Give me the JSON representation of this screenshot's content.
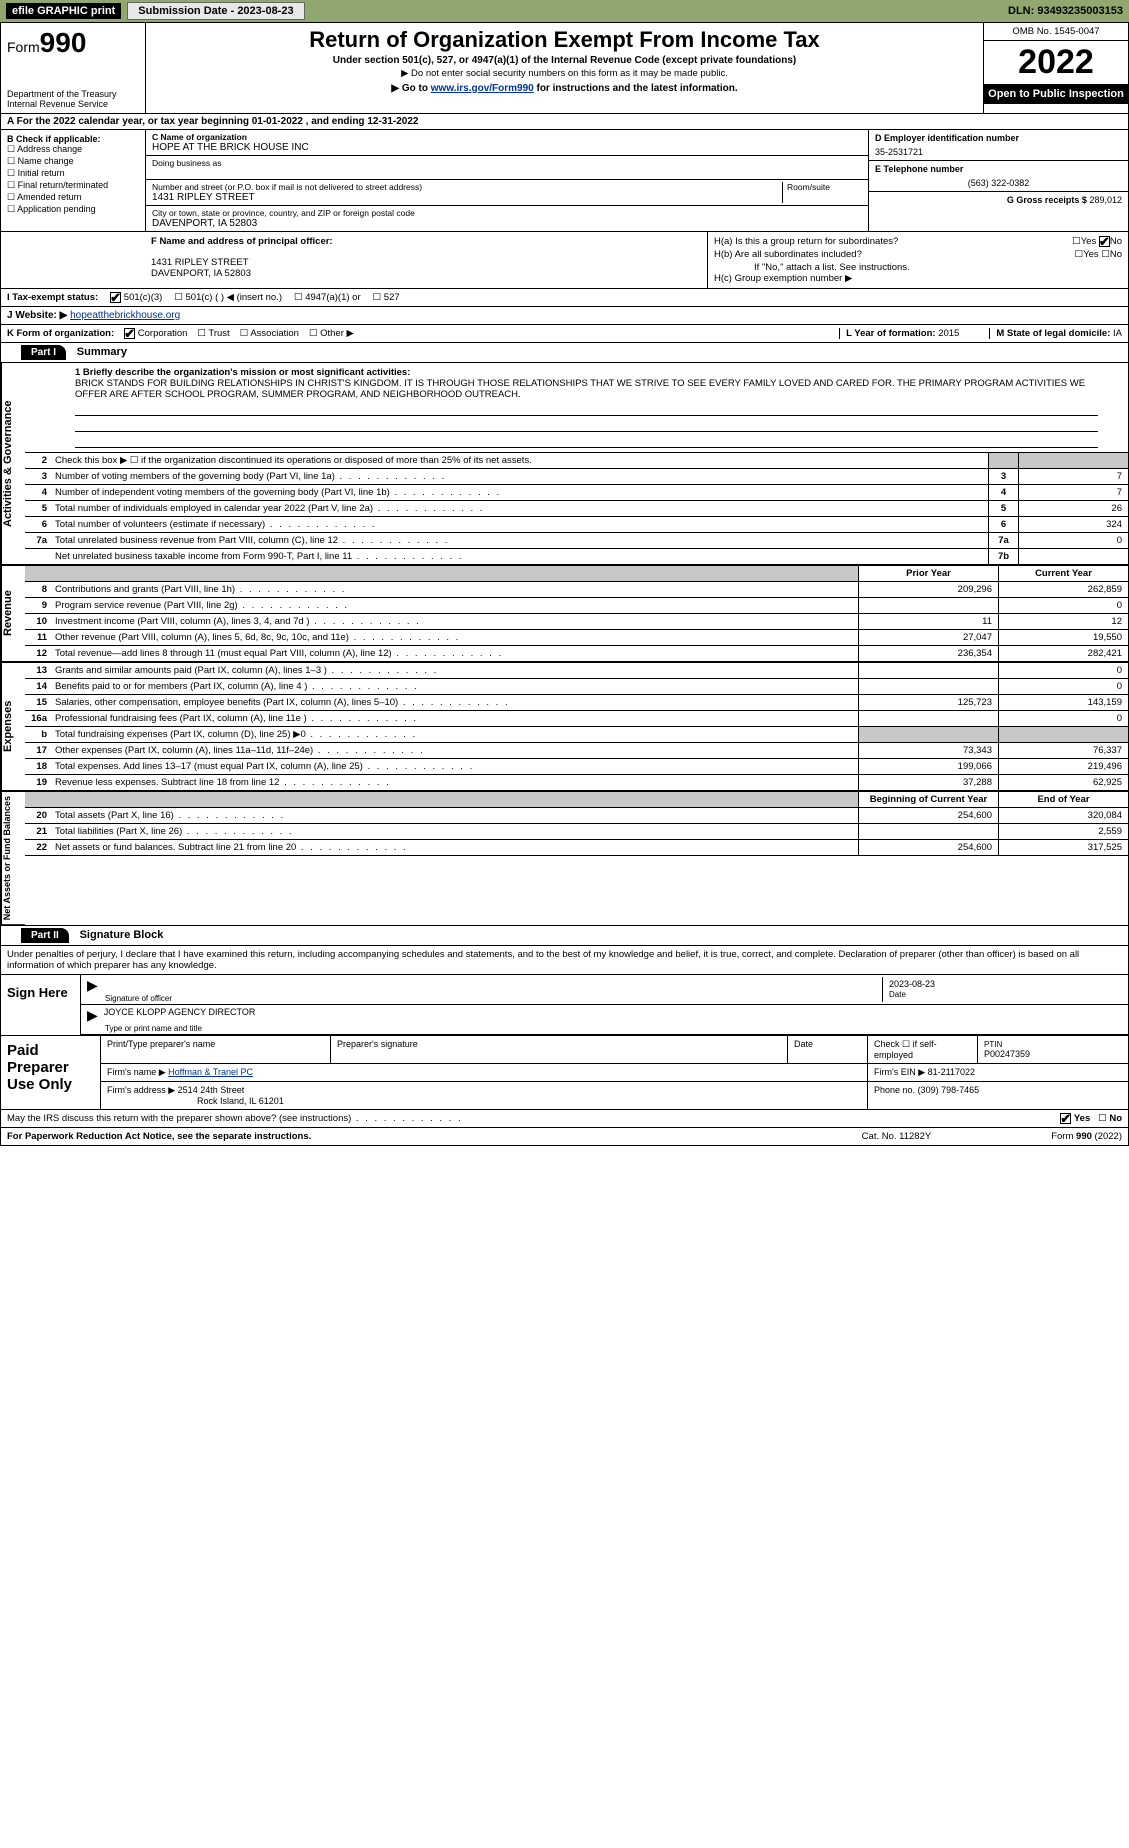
{
  "topbar": {
    "efile": "efile GRAPHIC print",
    "submission": "Submission Date - 2023-08-23",
    "dln": "DLN: 93493235003153"
  },
  "header": {
    "form_prefix": "Form",
    "form_num": "990",
    "dept": "Department of the Treasury Internal Revenue Service",
    "title": "Return of Organization Exempt From Income Tax",
    "sub": "Under section 501(c), 527, or 4947(a)(1) of the Internal Revenue Code (except private foundations)",
    "note": "▶ Do not enter social security numbers on this form as it may be made public.",
    "link_pre": "▶ Go to ",
    "link_url": "www.irs.gov/Form990",
    "link_post": " for instructions and the latest information.",
    "omb": "OMB No. 1545-0047",
    "year": "2022",
    "open_pub": "Open to Public Inspection"
  },
  "row_a": "A For the 2022 calendar year, or tax year beginning 01-01-2022    , and ending 12-31-2022",
  "box_b": {
    "title": "B Check if applicable:",
    "items": [
      "Address change",
      "Name change",
      "Initial return",
      "Final return/terminated",
      "Amended return",
      "Application pending"
    ]
  },
  "box_c": {
    "name_lbl": "C Name of organization",
    "name_val": "HOPE AT THE BRICK HOUSE INC",
    "dba_lbl": "Doing business as",
    "dba_val": "",
    "addr_lbl": "Number and street (or P.O. box if mail is not delivered to street address)",
    "room_lbl": "Room/suite",
    "addr_val": "1431 RIPLEY STREET",
    "city_lbl": "City or town, state or province, country, and ZIP or foreign postal code",
    "city_val": "DAVENPORT, IA  52803"
  },
  "box_d": {
    "ein_lbl": "D Employer identification number",
    "ein_val": "35-2531721",
    "phone_lbl": "E Telephone number",
    "phone_val": "(563) 322-0382",
    "gross_lbl": "G Gross receipts $",
    "gross_val": "289,012"
  },
  "box_f": {
    "lbl": "F Name and address of principal officer:",
    "line1": "1431 RIPLEY STREET",
    "line2": "DAVENPORT, IA  52803"
  },
  "box_h": {
    "ha": "H(a)  Is this a group return for subordinates?",
    "hb": "H(b)  Are all subordinates included?",
    "hb_note": "If \"No,\" attach a list. See instructions.",
    "hc": "H(c)  Group exemption number ▶"
  },
  "tax_status": {
    "lbl": "I  Tax-exempt status:",
    "o1": "501(c)(3)",
    "o2": "501(c) (   ) ◀ (insert no.)",
    "o3": "4947(a)(1) or",
    "o4": "527"
  },
  "row_j": {
    "lbl": "J  Website: ▶ ",
    "val": "hopeatthebrickhouse.org"
  },
  "row_k": {
    "lbl": "K Form of organization:",
    "o1": "Corporation",
    "o2": "Trust",
    "o3": "Association",
    "o4": "Other ▶",
    "l_lbl": "L Year of formation: ",
    "l_val": "2015",
    "m_lbl": "M State of legal domicile: ",
    "m_val": "IA"
  },
  "part1": {
    "num": "Part I",
    "title": "Summary"
  },
  "mission": {
    "lbl": "1  Briefly describe the organization's mission or most significant activities:",
    "text": "BRICK STANDS FOR BUILDING RELATIONSHIPS IN CHRIST'S KINGDOM. IT IS THROUGH THOSE RELATIONSHIPS THAT WE STRIVE TO SEE EVERY FAMILY LOVED AND CARED FOR. THE PRIMARY PROGRAM ACTIVITIES WE OFFER ARE AFTER SCHOOL PROGRAM, SUMMER PROGRAM, AND NEIGHBORHOOD OUTREACH."
  },
  "gov_rows": [
    {
      "n": "2",
      "t": "Check this box ▶ ☐  if the organization discontinued its operations or disposed of more than 25% of its net assets.",
      "box": "",
      "v": ""
    },
    {
      "n": "3",
      "t": "Number of voting members of the governing body (Part VI, line 1a)",
      "box": "3",
      "v": "7"
    },
    {
      "n": "4",
      "t": "Number of independent voting members of the governing body (Part VI, line 1b)",
      "box": "4",
      "v": "7"
    },
    {
      "n": "5",
      "t": "Total number of individuals employed in calendar year 2022 (Part V, line 2a)",
      "box": "5",
      "v": "26"
    },
    {
      "n": "6",
      "t": "Total number of volunteers (estimate if necessary)",
      "box": "6",
      "v": "324"
    },
    {
      "n": "7a",
      "t": "Total unrelated business revenue from Part VIII, column (C), line 12",
      "box": "7a",
      "v": "0"
    },
    {
      "n": "",
      "t": "Net unrelated business taxable income from Form 990-T, Part I, line 11",
      "box": "7b",
      "v": ""
    }
  ],
  "hdr_cols": {
    "c1": "Prior Year",
    "c2": "Current Year"
  },
  "rev_rows": [
    {
      "n": "8",
      "t": "Contributions and grants (Part VIII, line 1h)",
      "v1": "209,296",
      "v2": "262,859"
    },
    {
      "n": "9",
      "t": "Program service revenue (Part VIII, line 2g)",
      "v1": "",
      "v2": "0"
    },
    {
      "n": "10",
      "t": "Investment income (Part VIII, column (A), lines 3, 4, and 7d )",
      "v1": "11",
      "v2": "12"
    },
    {
      "n": "11",
      "t": "Other revenue (Part VIII, column (A), lines 5, 6d, 8c, 9c, 10c, and 11e)",
      "v1": "27,047",
      "v2": "19,550"
    },
    {
      "n": "12",
      "t": "Total revenue—add lines 8 through 11 (must equal Part VIII, column (A), line 12)",
      "v1": "236,354",
      "v2": "282,421"
    }
  ],
  "exp_rows": [
    {
      "n": "13",
      "t": "Grants and similar amounts paid (Part IX, column (A), lines 1–3 )",
      "v1": "",
      "v2": "0"
    },
    {
      "n": "14",
      "t": "Benefits paid to or for members (Part IX, column (A), line 4 )",
      "v1": "",
      "v2": "0"
    },
    {
      "n": "15",
      "t": "Salaries, other compensation, employee benefits (Part IX, column (A), lines 5–10)",
      "v1": "125,723",
      "v2": "143,159"
    },
    {
      "n": "16a",
      "t": "Professional fundraising fees (Part IX, column (A), line 11e )",
      "v1": "",
      "v2": "0"
    },
    {
      "n": "b",
      "t": "Total fundraising expenses (Part IX, column (D), line 25) ▶0",
      "v1": "shade",
      "v2": "shade"
    },
    {
      "n": "17",
      "t": "Other expenses (Part IX, column (A), lines 11a–11d, 11f–24e)",
      "v1": "73,343",
      "v2": "76,337"
    },
    {
      "n": "18",
      "t": "Total expenses. Add lines 13–17 (must equal Part IX, column (A), line 25)",
      "v1": "199,066",
      "v2": "219,496"
    },
    {
      "n": "19",
      "t": "Revenue less expenses. Subtract line 18 from line 12",
      "v1": "37,288",
      "v2": "62,925"
    }
  ],
  "hdr_cols2": {
    "c1": "Beginning of Current Year",
    "c2": "End of Year"
  },
  "net_rows": [
    {
      "n": "20",
      "t": "Total assets (Part X, line 16)",
      "v1": "254,600",
      "v2": "320,084"
    },
    {
      "n": "21",
      "t": "Total liabilities (Part X, line 26)",
      "v1": "",
      "v2": "2,559"
    },
    {
      "n": "22",
      "t": "Net assets or fund balances. Subtract line 21 from line 20",
      "v1": "254,600",
      "v2": "317,525"
    }
  ],
  "part2": {
    "num": "Part II",
    "title": "Signature Block"
  },
  "sig_intro": "Under penalties of perjury, I declare that I have examined this return, including accompanying schedules and statements, and to the best of my knowledge and belief, it is true, correct, and complete. Declaration of preparer (other than officer) is based on all information of which preparer has any knowledge.",
  "sign_here": {
    "lbl": "Sign Here",
    "sig_lbl": "Signature of officer",
    "date_lbl": "Date",
    "date_val": "2023-08-23",
    "name_val": "JOYCE KLOPP  AGENCY DIRECTOR",
    "name_lbl": "Type or print name and title"
  },
  "paid": {
    "lbl": "Paid Preparer Use Only",
    "h1": "Print/Type preparer's name",
    "h2": "Preparer's signature",
    "h3": "Date",
    "h4": "Check ☐ if self-employed",
    "h5_lbl": "PTIN",
    "h5_val": "P00247359",
    "firm_name_lbl": "Firm's name    ▶",
    "firm_name_val": "Hoffman & Tranel PC",
    "firm_ein_lbl": "Firm's EIN ▶",
    "firm_ein_val": "81-2117022",
    "firm_addr_lbl": "Firm's address ▶",
    "firm_addr_val1": "2514 24th Street",
    "firm_addr_val2": "Rock Island, IL  61201",
    "phone_lbl": "Phone no.",
    "phone_val": "(309) 798-7465"
  },
  "discuss": "May the IRS discuss this return with the preparer shown above? (see instructions)",
  "yes": "Yes",
  "no": "No",
  "footer": {
    "left": "For Paperwork Reduction Act Notice, see the separate instructions.",
    "mid": "Cat. No. 11282Y",
    "right_pre": "Form ",
    "right_num": "990",
    "right_post": " (2022)"
  },
  "vtabs": {
    "gov": "Activities & Governance",
    "rev": "Revenue",
    "exp": "Expenses",
    "net": "Net Assets or Fund Balances"
  }
}
